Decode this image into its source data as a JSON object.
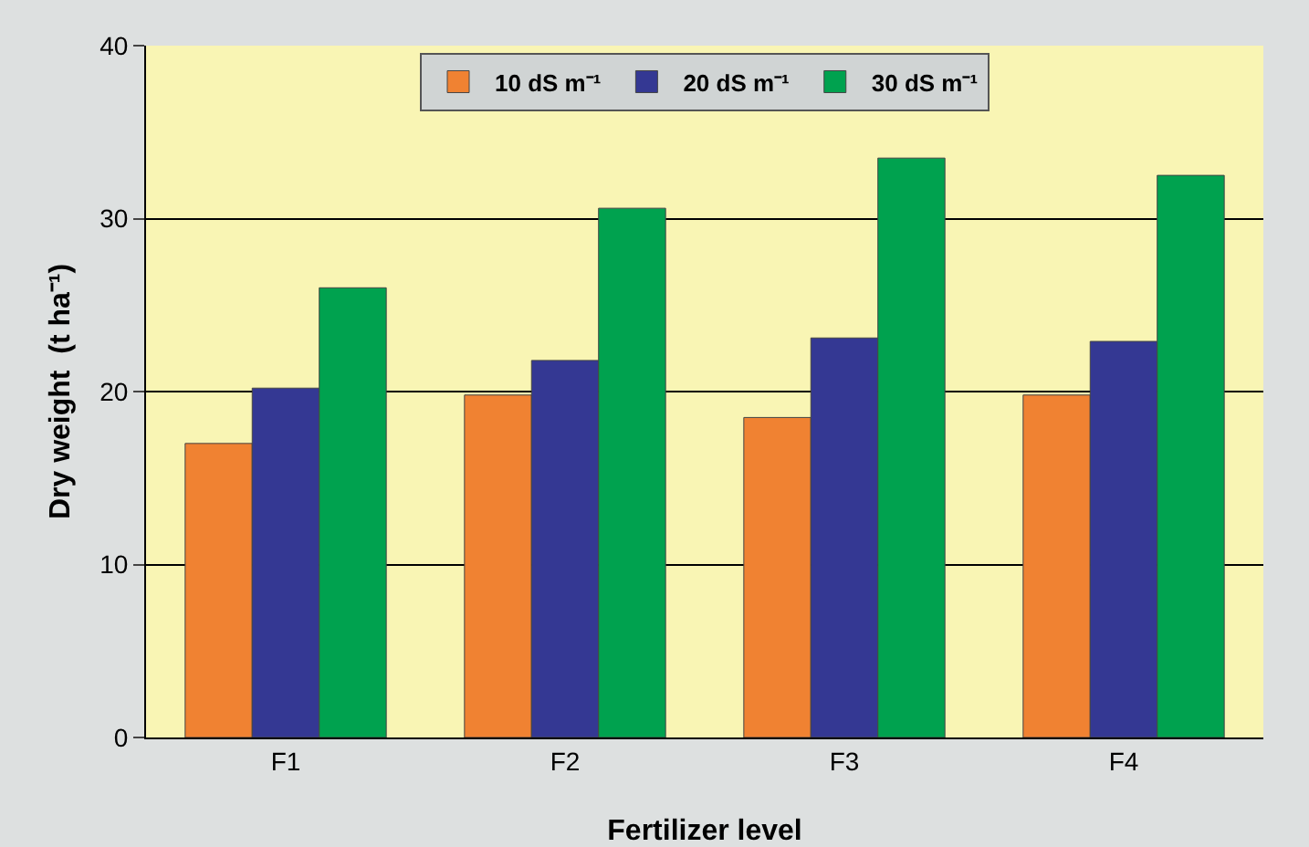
{
  "chart_data": {
    "type": "bar",
    "xlabel": "Fertilizer level",
    "ylabel": "Dry weight  (t ha⁻¹)",
    "categories": [
      "F1",
      "F2",
      "F3",
      "F4"
    ],
    "series": [
      {
        "name": "10 dS m⁻¹",
        "color": "#f08232",
        "values": [
          17,
          19.8,
          18.5,
          19.8
        ]
      },
      {
        "name": "20 dS m⁻¹",
        "color": "#343893",
        "values": [
          20.2,
          21.8,
          23.1,
          22.9
        ]
      },
      {
        "name": "30 dS m⁻¹",
        "color": "#00a24f",
        "values": [
          26,
          30.6,
          33.5,
          32.5
        ]
      }
    ],
    "ylim": [
      0,
      40
    ],
    "yticks": [
      0,
      10,
      20,
      30,
      40
    ],
    "grid": "y",
    "legend": "top"
  }
}
